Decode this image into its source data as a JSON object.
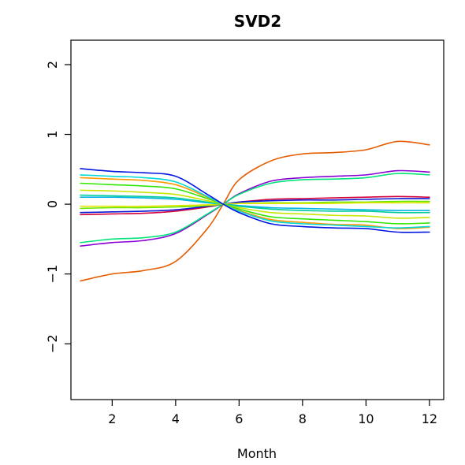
{
  "chart_data": {
    "type": "line",
    "title": "SVD2",
    "xlabel": "Month",
    "ylabel": "",
    "xlim": [
      0.7,
      12.45
    ],
    "ylim": [
      -2.8,
      2.35
    ],
    "xticks": [
      2,
      4,
      6,
      8,
      10,
      12
    ],
    "yticks": [
      -2,
      -1,
      0,
      1,
      2
    ],
    "ytick_labels": [
      "−2",
      "−1",
      "0",
      "1",
      "2"
    ],
    "grid": false,
    "legend": "none",
    "x": [
      1,
      2,
      3,
      4,
      5,
      5.5,
      6,
      7,
      8,
      9,
      10,
      11,
      12
    ],
    "series": [
      {
        "color": "#e65c00",
        "values": [
          -1.1,
          -1.0,
          -0.95,
          -0.82,
          -0.35,
          0.0,
          0.35,
          0.62,
          0.72,
          0.74,
          0.78,
          0.9,
          0.85
        ]
      },
      {
        "color": "#8a00d4",
        "values": [
          -0.6,
          -0.55,
          -0.52,
          -0.42,
          -0.15,
          0.0,
          0.15,
          0.33,
          0.38,
          0.4,
          0.42,
          0.48,
          0.46
        ]
      },
      {
        "color": "#00e57a",
        "values": [
          -0.55,
          -0.5,
          -0.48,
          -0.4,
          -0.14,
          0.0,
          0.14,
          0.3,
          0.35,
          0.36,
          0.38,
          0.44,
          0.42
        ]
      },
      {
        "color": "#d4003a",
        "values": [
          -0.15,
          -0.14,
          -0.13,
          -0.1,
          -0.04,
          0.0,
          0.03,
          0.07,
          0.08,
          0.09,
          0.1,
          0.11,
          0.1
        ]
      },
      {
        "color": "#0a1ad6",
        "values": [
          -0.12,
          -0.11,
          -0.1,
          -0.08,
          -0.03,
          0.0,
          0.03,
          0.05,
          0.06,
          0.06,
          0.07,
          0.08,
          0.08
        ]
      },
      {
        "color": "#66e600",
        "values": [
          -0.06,
          -0.05,
          -0.05,
          -0.04,
          -0.02,
          0.0,
          0.01,
          0.02,
          0.02,
          0.03,
          0.03,
          0.04,
          0.04
        ]
      },
      {
        "color": "#e6e600",
        "values": [
          -0.03,
          -0.03,
          -0.03,
          -0.02,
          -0.01,
          0.0,
          0.01,
          0.01,
          0.01,
          0.01,
          0.02,
          0.02,
          0.02
        ]
      },
      {
        "color": "#00b3e6",
        "values": [
          0.1,
          0.1,
          0.09,
          0.07,
          0.02,
          0.0,
          -0.02,
          -0.05,
          -0.06,
          -0.07,
          -0.08,
          -0.09,
          -0.09
        ]
      },
      {
        "color": "#00cc99",
        "values": [
          0.13,
          0.12,
          0.11,
          0.09,
          0.03,
          0.0,
          -0.03,
          -0.07,
          -0.09,
          -0.1,
          -0.1,
          -0.12,
          -0.12
        ]
      },
      {
        "color": "#c8e600",
        "values": [
          0.2,
          0.19,
          0.17,
          0.14,
          0.05,
          0.0,
          -0.05,
          -0.12,
          -0.14,
          -0.16,
          -0.17,
          -0.2,
          -0.19
        ]
      },
      {
        "color": "#33e600",
        "values": [
          0.3,
          0.28,
          0.26,
          0.22,
          0.08,
          0.0,
          -0.07,
          -0.18,
          -0.21,
          -0.23,
          -0.25,
          -0.28,
          -0.27
        ]
      },
      {
        "color": "#ff9900",
        "values": [
          0.38,
          0.36,
          0.34,
          0.28,
          0.1,
          0.0,
          -0.09,
          -0.22,
          -0.26,
          -0.29,
          -0.3,
          -0.35,
          -0.33
        ]
      },
      {
        "color": "#00d9d9",
        "values": [
          0.42,
          0.4,
          0.38,
          0.32,
          0.11,
          0.0,
          -0.1,
          -0.24,
          -0.28,
          -0.3,
          -0.32,
          -0.34,
          -0.32
        ]
      },
      {
        "color": "#0015e0",
        "values": [
          0.51,
          0.47,
          0.45,
          0.4,
          0.14,
          0.0,
          -0.12,
          -0.28,
          -0.32,
          -0.34,
          -0.35,
          -0.4,
          -0.4
        ]
      }
    ]
  }
}
